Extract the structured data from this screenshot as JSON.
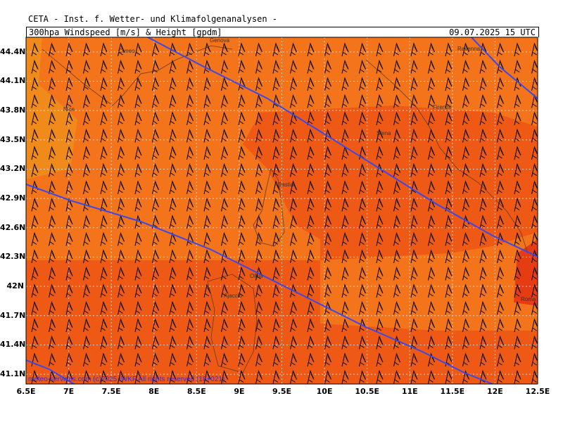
{
  "header": {
    "organization": "CETA - Inst. f. Wetter- und Klimafolgenanalysen -",
    "product": "300hpa_Windspeed [m/s] & Height [gpdm]",
    "valid_time": "09.07.2025 15 UTC"
  },
  "axes": {
    "lat_labels": [
      "44.4N",
      "44.1N",
      "43.8N",
      "43.5N",
      "43.2N",
      "42.9N",
      "42.6N",
      "42.3N",
      "42N",
      "41.7N",
      "41.4N",
      "41.1N"
    ],
    "lon_labels": [
      "6.5E",
      "7E",
      "7.5E",
      "8E",
      "8.5E",
      "9E",
      "9.5E",
      "10E",
      "10.5E",
      "11E",
      "11.5E",
      "12E",
      "12.5E"
    ]
  },
  "cities": [
    "Cuneo",
    "Genova",
    "Ravenna",
    "Nice",
    "Firenze",
    "Siena",
    "Bastia",
    "Roma",
    "Olbia",
    "Ajaccio"
  ],
  "colors": {
    "fill_light": "#f08a1a",
    "fill_mid": "#f3741a",
    "fill_strong": "#ee5a16",
    "fill_peak": "#e63c14",
    "contour": "#3a49e8",
    "grid": "#d8d8d8",
    "wind_barbs": "#000000"
  },
  "footer": {
    "copyright": "meteo-services.com  (c)2025 IWKF  All rights reserved (18+021)"
  }
}
